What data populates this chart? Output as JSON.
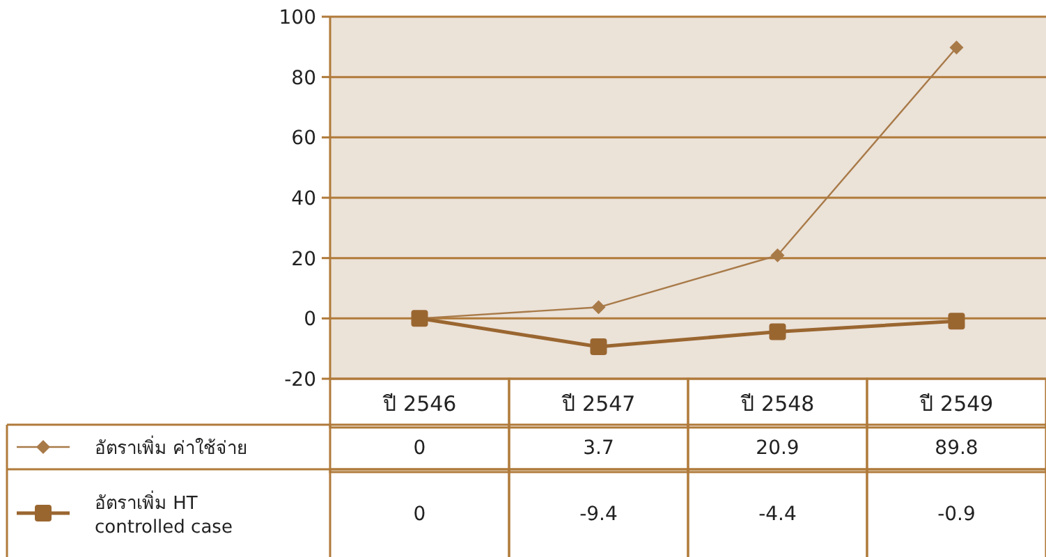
{
  "chart_data": {
    "type": "line",
    "categories": [
      "ปี 2546",
      "ปี 2547",
      "ปี 2548",
      "ปี 2549"
    ],
    "series": [
      {
        "name": "อัตราเพิ่ม ค่าใช้จ่าย",
        "color": "#a87a48",
        "marker": "diamond",
        "values": [
          0,
          3.7,
          20.9,
          89.8
        ]
      },
      {
        "name": "อัตราเพิ่ม HT controlled case",
        "color": "#9a6630",
        "marker": "square",
        "values": [
          0,
          -9.4,
          -4.4,
          -0.9
        ]
      }
    ],
    "ylim": [
      -20,
      100
    ],
    "yticks": [
      -20,
      0,
      20,
      40,
      60,
      80,
      100
    ],
    "grid": "y",
    "data_labels": true,
    "legend": "bottom left"
  }
}
